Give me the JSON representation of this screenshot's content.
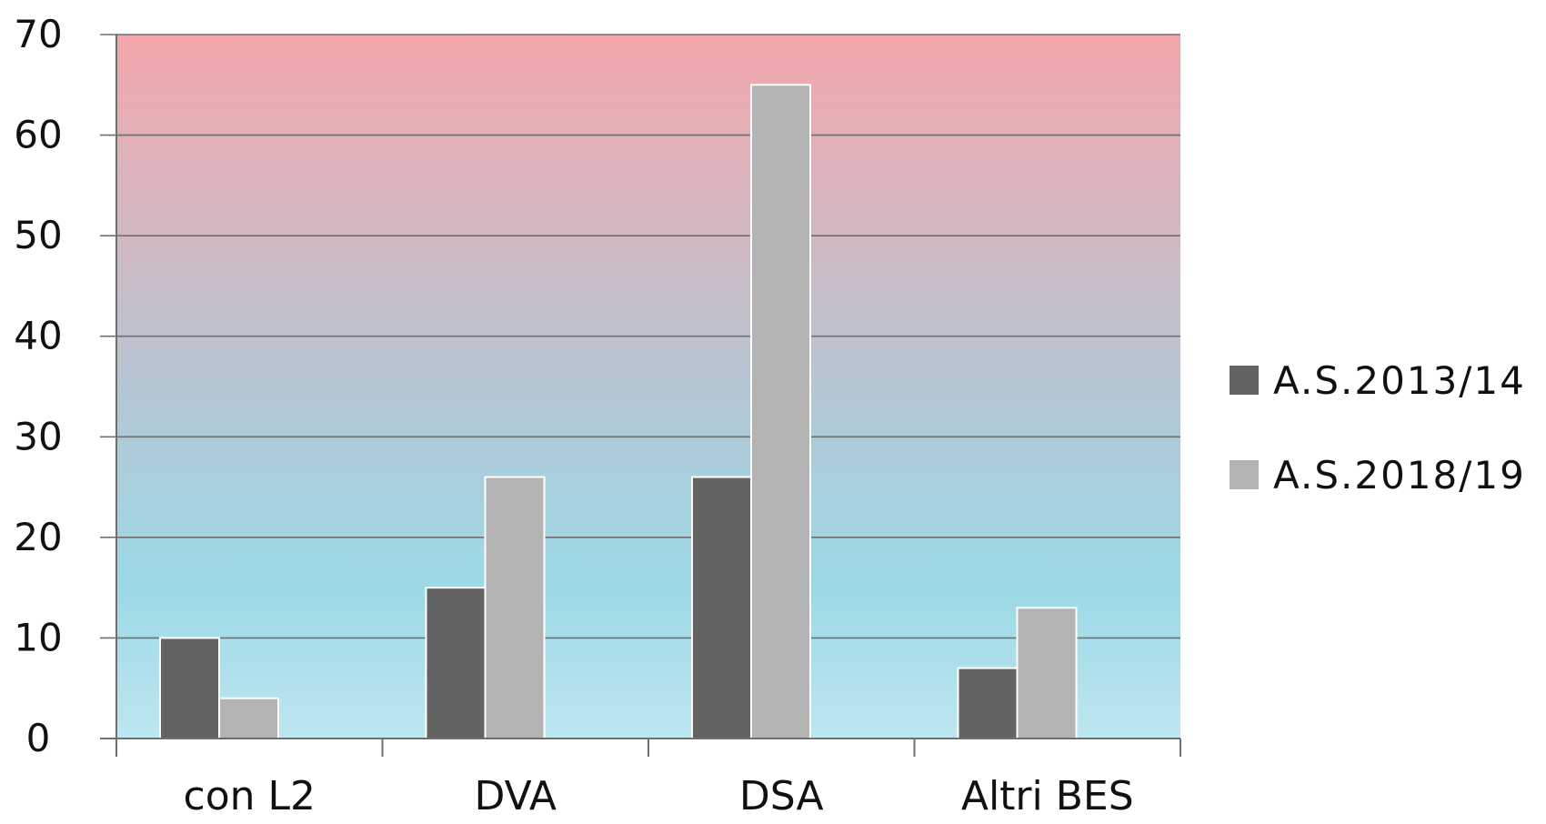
{
  "chart_data": {
    "type": "bar",
    "categories": [
      "con L2",
      "DVA",
      "DSA",
      "Altri BES"
    ],
    "series": [
      {
        "name": "A.S.2013/14",
        "values": [
          10,
          15,
          26,
          7
        ],
        "color": "#636363"
      },
      {
        "name": "A.S.2018/19",
        "values": [
          4,
          26,
          65,
          13
        ],
        "color": "#b3b3b3"
      }
    ],
    "ylim": [
      0,
      70
    ],
    "yticks": [
      "0",
      "10",
      "20",
      "30",
      "40",
      "50",
      "60",
      "70"
    ],
    "grid": true,
    "legend_position": "right",
    "background_gradient": {
      "top": "#f4a6ab",
      "bottom": "#bde6f0",
      "middle": "#9cd8e6"
    }
  }
}
